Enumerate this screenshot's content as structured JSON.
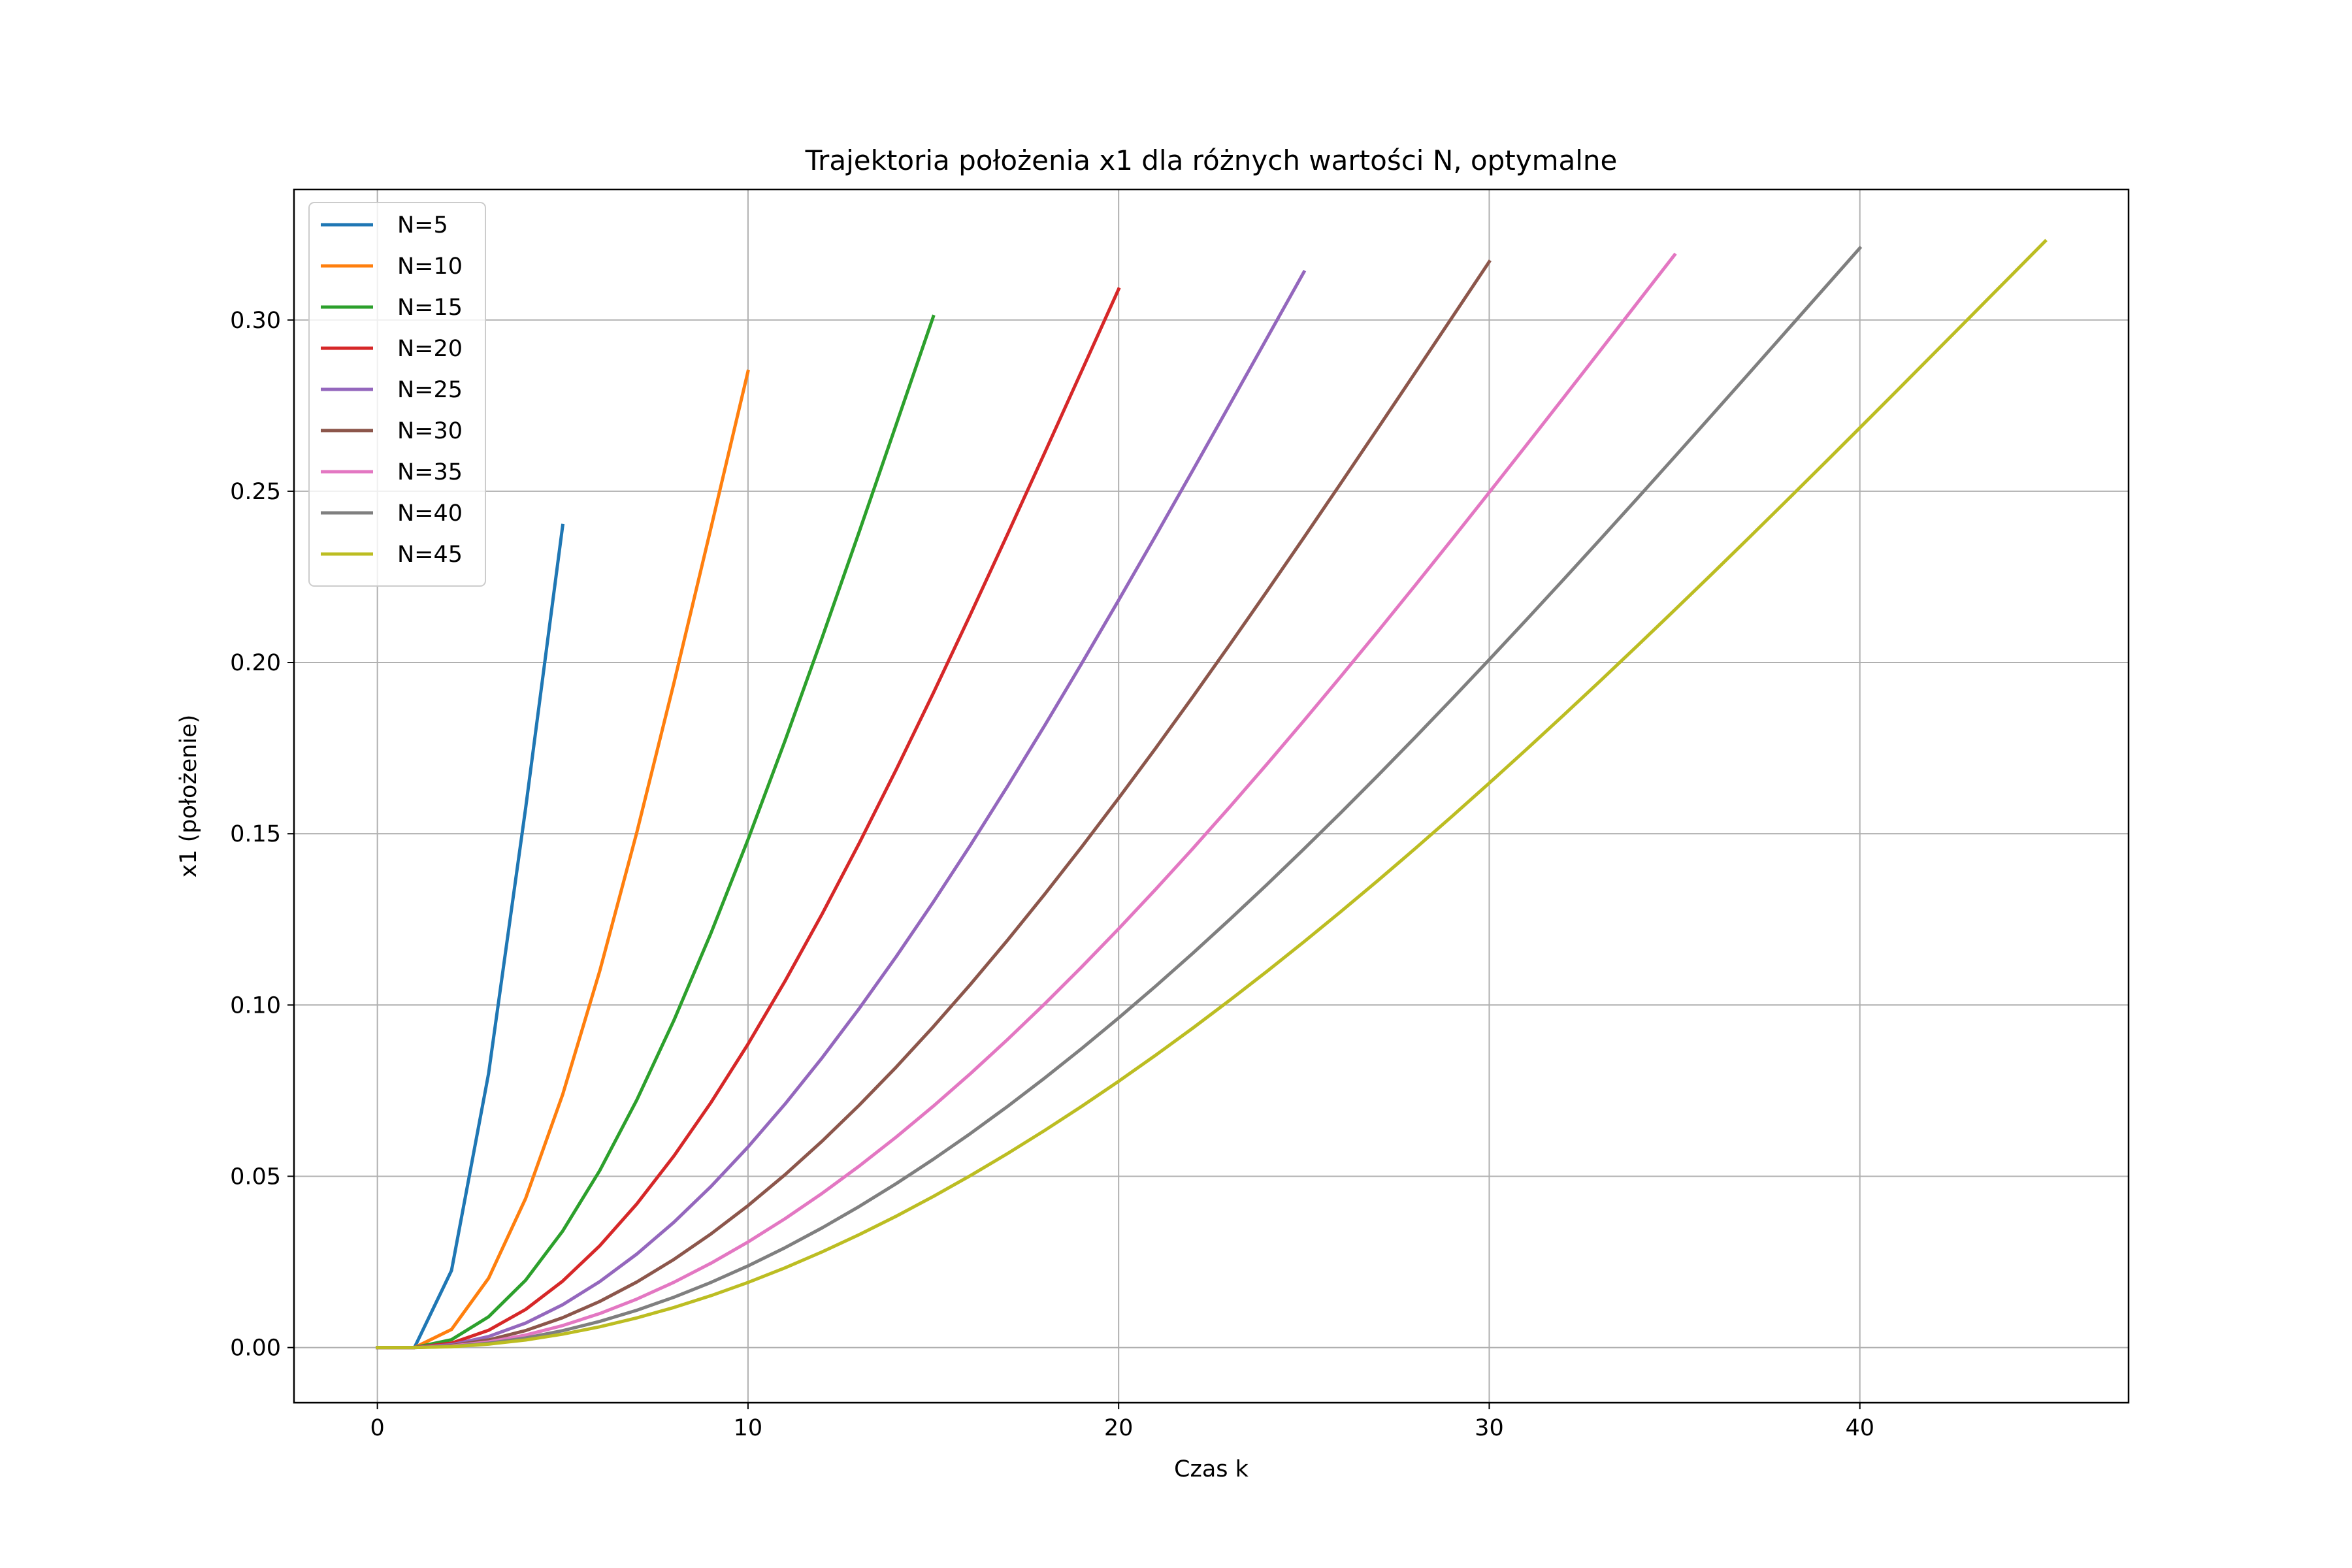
{
  "chart_data": {
    "type": "line",
    "title": "Trajektoria położenia x1 dla różnych wartości N, optymalne",
    "xlabel": "Czas k",
    "ylabel": "x1 (położenie)",
    "xlim": [
      -2.25,
      47.25
    ],
    "ylim": [
      -0.0161,
      0.3381
    ],
    "xticks": [
      0,
      10,
      20,
      30,
      40
    ],
    "xtick_labels": [
      "0",
      "10",
      "20",
      "30",
      "40"
    ],
    "yticks": [
      0.0,
      0.05,
      0.1,
      0.15,
      0.2,
      0.25,
      0.3
    ],
    "ytick_labels": [
      "0.00",
      "0.05",
      "0.10",
      "0.15",
      "0.20",
      "0.25",
      "0.30"
    ],
    "grid": true,
    "legend_position": "upper-left",
    "series": [
      {
        "name": "N=5",
        "color": "#1f77b4",
        "N": 5,
        "final": 0.24
      },
      {
        "name": "N=10",
        "color": "#ff7f0e",
        "N": 10,
        "final": 0.285
      },
      {
        "name": "N=15",
        "color": "#2ca02c",
        "N": 15,
        "final": 0.301
      },
      {
        "name": "N=20",
        "color": "#d62728",
        "N": 20,
        "final": 0.309
      },
      {
        "name": "N=25",
        "color": "#9467bd",
        "N": 25,
        "final": 0.314
      },
      {
        "name": "N=30",
        "color": "#8c564b",
        "N": 30,
        "final": 0.317
      },
      {
        "name": "N=35",
        "color": "#e377c2",
        "N": 35,
        "final": 0.319
      },
      {
        "name": "N=40",
        "color": "#7f7f7f",
        "N": 40,
        "final": 0.321
      },
      {
        "name": "N=45",
        "color": "#bcbd22",
        "N": 45,
        "final": 0.323
      }
    ]
  }
}
